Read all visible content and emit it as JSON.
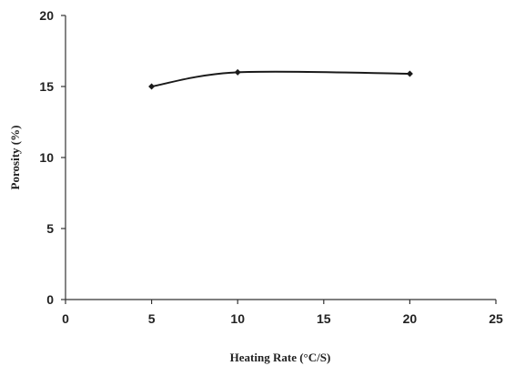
{
  "chart_data": {
    "type": "line",
    "xlabel": "Heating Rate (°C/S)",
    "ylabel": "Porosity (%)",
    "xlim": [
      0,
      25
    ],
    "ylim": [
      0,
      20
    ],
    "x_ticks": [
      "0",
      "5",
      "10",
      "15",
      "20",
      "25"
    ],
    "y_ticks": [
      "0",
      "5",
      "10",
      "15",
      "20"
    ],
    "grid": false,
    "smooth": true,
    "marker": "diamond",
    "series": [
      {
        "x": [
          5,
          10,
          20
        ],
        "y": [
          15.0,
          16.0,
          15.9
        ]
      }
    ]
  }
}
